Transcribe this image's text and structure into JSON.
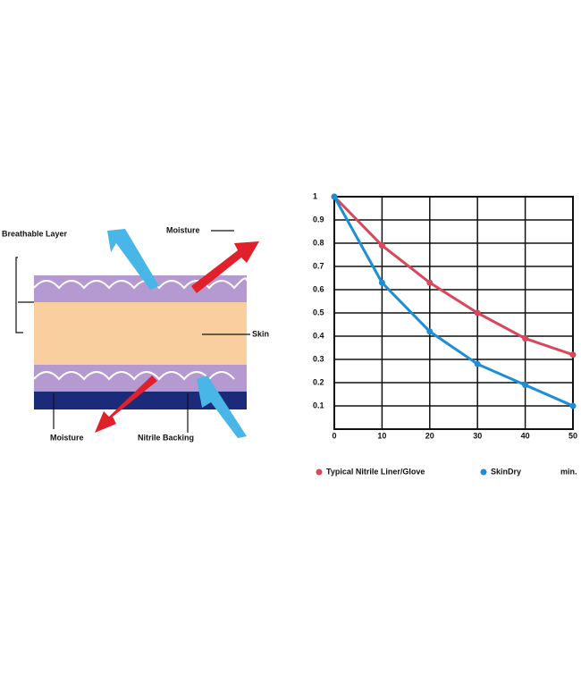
{
  "diagram": {
    "layer_label": "Breathable Layer",
    "moisture_top": "Moisture",
    "skin": "Skin",
    "moisture_bottom": "Moisture",
    "backing": "Nitrile Backing"
  },
  "chart_data": {
    "type": "line",
    "x": [
      0,
      10,
      20,
      30,
      40,
      50
    ],
    "xlim": [
      0,
      50
    ],
    "xticks": [
      0,
      10,
      20,
      30,
      40,
      50
    ],
    "xlabel": "min.",
    "ylim": [
      0,
      1
    ],
    "yticks": [
      0.1,
      0.2,
      0.3,
      0.4,
      0.5,
      0.6,
      0.7,
      0.8,
      0.9,
      1
    ],
    "grid": true,
    "series": [
      {
        "name": "Typical Nitrile Liner/Glove",
        "color": "#d9475a",
        "values": [
          1,
          0.79,
          0.63,
          0.5,
          0.39,
          0.32
        ]
      },
      {
        "name": "SkinDry",
        "color": "#1a8fd8",
        "values": [
          1,
          0.63,
          0.42,
          0.28,
          0.19,
          0.1
        ]
      }
    ]
  }
}
